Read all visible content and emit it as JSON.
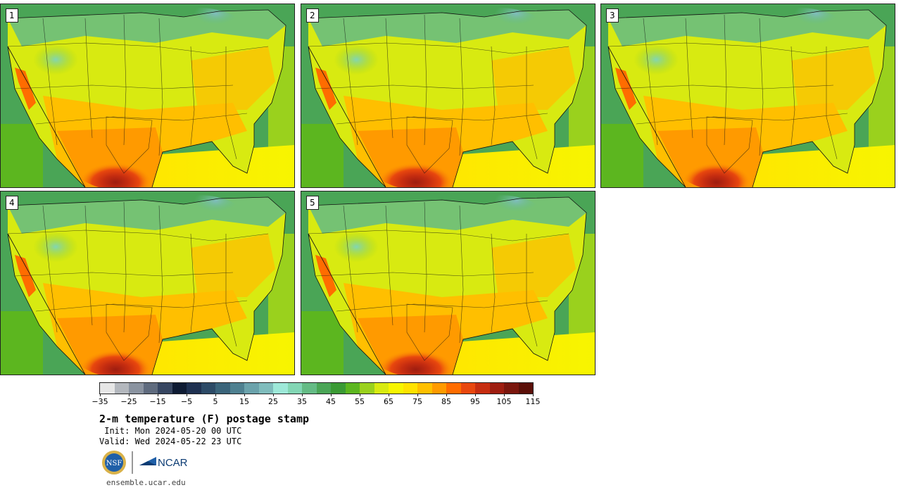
{
  "panels": [
    {
      "label": "1",
      "variant": 1
    },
    {
      "label": "2",
      "variant": 2
    },
    {
      "label": "3",
      "variant": 3
    },
    {
      "label": "4",
      "variant": 4
    },
    {
      "label": "5",
      "variant": 5
    }
  ],
  "colorbar": {
    "colors": [
      "#e6e6e6",
      "#b3b7bd",
      "#8a93a0",
      "#5f6b7e",
      "#374661",
      "#0e1b33",
      "#1e3050",
      "#2c4a66",
      "#3a647a",
      "#4e8090",
      "#6aa2ab",
      "#7fbcbc",
      "#9de8d8",
      "#82d6b4",
      "#64bb85",
      "#4aa556",
      "#3a9a34",
      "#5cb61f",
      "#9ad11d",
      "#d8ea11",
      "#f7f500",
      "#ffe200",
      "#ffbf00",
      "#ff9a00",
      "#ff6c00",
      "#e8470e",
      "#c62d10",
      "#9e1d10",
      "#7a160d",
      "#5a0f08"
    ],
    "ticks": [
      "-35",
      "-25",
      "-15",
      "-5",
      "5",
      "15",
      "25",
      "35",
      "45",
      "55",
      "65",
      "75",
      "85",
      "95",
      "105",
      "115"
    ]
  },
  "title": "2-m temperature (F) postage stamp",
  "init": " Init: Mon 2024-05-20 00 UTC",
  "valid": "Valid: Wed 2024-05-22 23 UTC",
  "logos": {
    "nsf": "NSF",
    "ncar": "NCAR"
  },
  "website": "ensemble.ucar.edu"
}
